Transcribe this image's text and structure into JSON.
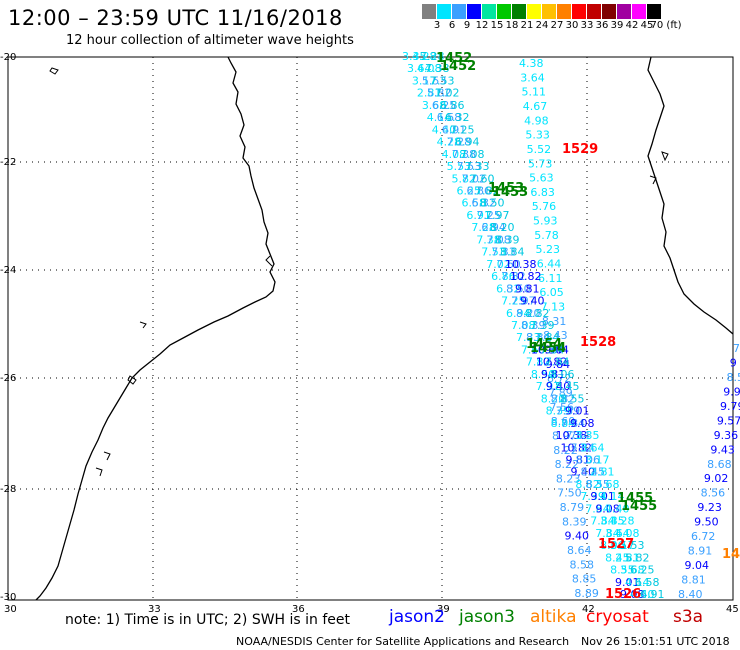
{
  "header": {
    "title": "12:00 – 23:59 UTC 11/16/2018",
    "subtitle": "12 hour collection of altimeter wave heights"
  },
  "color_scale": {
    "labels": [
      "3",
      "6",
      "9",
      "12",
      "15",
      "18",
      "21",
      "24",
      "27",
      "30",
      "33",
      "36",
      "39",
      "42",
      "45",
      "70 (ft)"
    ],
    "colors": [
      "#808080",
      "#00e5ff",
      "#3aa0ff",
      "#0000ff",
      "#00e6a0",
      "#00c800",
      "#008000",
      "#ffff00",
      "#ffc000",
      "#ff8000",
      "#ff0000",
      "#c00000",
      "#800000",
      "#a000a0",
      "#ff00ff",
      "#000000"
    ]
  },
  "map": {
    "lat_labels": [
      "-20",
      "-22",
      "-24",
      "-26",
      "-28",
      "-30"
    ],
    "lon_labels": [
      "30",
      "33",
      "36",
      "39",
      "42",
      "45"
    ],
    "time_labels": [
      {
        "text": "1452",
        "color": "#008000"
      },
      {
        "text": "1452",
        "color": "#008000"
      },
      {
        "text": "1529",
        "color": "#ff0000"
      },
      {
        "text": "1453",
        "color": "#008000"
      },
      {
        "text": "1453",
        "color": "#008000"
      },
      {
        "text": "1528",
        "color": "#ff0000"
      },
      {
        "text": "1454",
        "color": "#008000"
      },
      {
        "text": "1454",
        "color": "#008000"
      },
      {
        "text": "1455",
        "color": "#008000"
      },
      {
        "text": "1455",
        "color": "#008000"
      },
      {
        "text": "1527",
        "color": "#ff0000"
      },
      {
        "text": "1526",
        "color": "#ff0000"
      },
      {
        "text": "14",
        "color": "#ff8000"
      }
    ],
    "track_tracks": {
      "cryosat_values": [
        "4.38",
        "3.64",
        "5.11",
        "4.67",
        "4.98",
        "5.33",
        "5.52",
        "5.73",
        "5.63",
        "6.83",
        "5.76",
        "5.93",
        "5.78",
        "5.23",
        "6.44",
        "6.11",
        "6.05",
        "7.13",
        "8.31",
        "8.43",
        "9.44",
        "9.84",
        "8.72",
        "7.89",
        "7.56",
        "8.60",
        "8.97",
        "8.22",
        "8.22",
        "8.23",
        "7.50",
        "8.79",
        "8.39",
        "9.40",
        "8.64",
        "8.58",
        "8.85",
        "8.89"
      ],
      "cryosat_colors": [
        "#00e5ff",
        "#00e5ff",
        "#00e5ff",
        "#00e5ff",
        "#00e5ff",
        "#00e5ff",
        "#00e5ff",
        "#00e5ff",
        "#00e5ff",
        "#00e5ff",
        "#00e5ff",
        "#00e5ff",
        "#00e5ff",
        "#00e5ff",
        "#00e5ff",
        "#00e5ff",
        "#00e5ff",
        "#00e5ff",
        "#3aa0ff",
        "#3aa0ff",
        "#0000ff",
        "#0000ff",
        "#3aa0ff",
        "#3aa0ff",
        "#3aa0ff",
        "#3aa0ff",
        "#3aa0ff",
        "#3aa0ff",
        "#3aa0ff",
        "#3aa0ff",
        "#3aa0ff",
        "#3aa0ff",
        "#3aa0ff",
        "#0000ff",
        "#3aa0ff",
        "#3aa0ff",
        "#3aa0ff",
        "#3aa0ff"
      ],
      "s3a_values": [
        "7",
        "9",
        "8.5",
        "9.9",
        "9.79",
        "9.57",
        "9.36",
        "9.43",
        "8.68",
        "9.02",
        "8.56",
        "9.23",
        "9.50",
        "6.72",
        "8.91",
        "9.04",
        "8.81",
        "8.40"
      ],
      "s3a_colors": [
        "#3aa0ff",
        "#0000ff",
        "#3aa0ff",
        "#0000ff",
        "#0000ff",
        "#0000ff",
        "#0000ff",
        "#0000ff",
        "#3aa0ff",
        "#0000ff",
        "#3aa0ff",
        "#0000ff",
        "#0000ff",
        "#3aa0ff",
        "#3aa0ff",
        "#0000ff",
        "#3aa0ff",
        "#3aa0ff"
      ],
      "dense_values": [
        "3.35",
        "3.64",
        "3.17",
        "2.81",
        "3.68",
        "4.14",
        "4.40",
        "4.28",
        "4.08",
        "5.53",
        "5.82",
        "6.25",
        "6.58",
        "6.91",
        "7.28",
        "7.38",
        "7.53",
        "7.02",
        "6.86",
        "6.32",
        "7.25",
        "6.94",
        "7.08",
        "7.33",
        "7.60",
        "7.82",
        "8.50",
        "7.97",
        "8.20",
        "8.39",
        "8.84",
        "10.38",
        "10.82",
        "9.81",
        "9.40",
        "8.82",
        "7.39",
        "7.84",
        "7.84",
        "7.84",
        "8.06",
        "8.45",
        "8.55",
        "9.01",
        "9.08"
      ]
    }
  },
  "note": "note:  1) Time is in UTC;  2) SWH is in feet",
  "legend": [
    {
      "label": "jason2",
      "color": "#0000ff"
    },
    {
      "label": "jason3",
      "color": "#008000"
    },
    {
      "label": "altika",
      "color": "#ff8000"
    },
    {
      "label": "cryosat",
      "color": "#ff0000"
    },
    {
      "label": "s3a",
      "color": "#c00000"
    }
  ],
  "footer": {
    "credit": "NOAA/NESDIS Center for Satellite Applications and Research",
    "timestamp": "Nov 26 15:01:51 UTC 2018"
  }
}
